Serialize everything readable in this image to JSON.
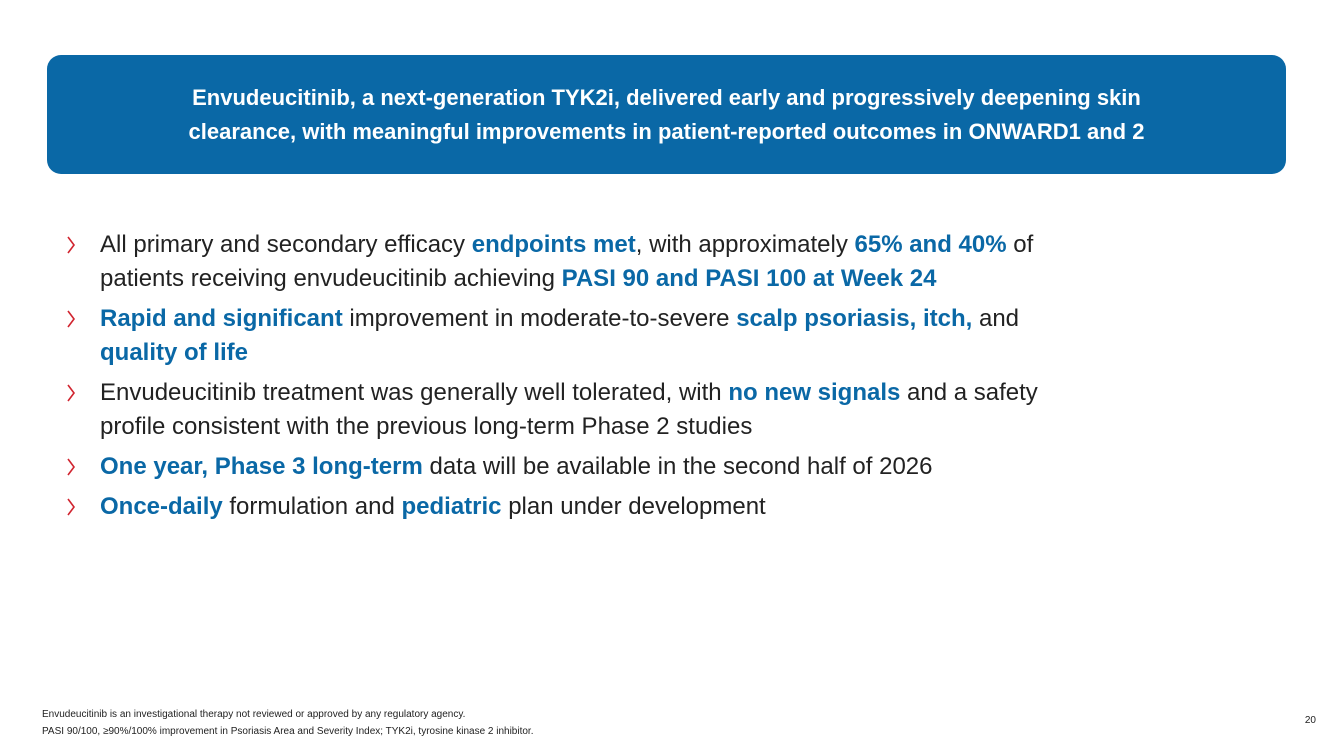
{
  "header": {
    "line1": "Envudeucitinib, a next-generation TYK2i, delivered early and progressively deepening skin",
    "line2": "clearance, with meaningful improvements in patient-reported outcomes in ONWARD1 and 2"
  },
  "bullets": [
    {
      "p1": "All primary and secondary efficacy ",
      "h1": "endpoints met",
      "p2": ", with approximately ",
      "h2": "65% and 40%",
      "p3": " of",
      "p4": "patients receiving envudeucitinib achieving ",
      "h3": "PASI 90 and PASI 100 at Week 24"
    },
    {
      "h1": "Rapid and significant",
      "p1": " improvement in moderate-to-severe ",
      "h2": "scalp psoriasis, itch,",
      "p2": " and",
      "h3": "quality of life"
    },
    {
      "p1": "Envudeucitinib treatment was generally well tolerated, with ",
      "h1": "no new signals",
      "p2": " and a safety",
      "p3": "profile consistent with the previous long-term Phase 2 studies"
    },
    {
      "h1": "One year, Phase 3 long-term",
      "p1": " data will be available in the second half of 2026"
    },
    {
      "h1": "Once-daily",
      "p1": " formulation and ",
      "h2": "pediatric",
      "p2": " plan under development"
    }
  ],
  "footnotes": {
    "line1": "Envudeucitinib is an investigational therapy not reviewed or approved by any regulatory agency.",
    "line2": "PASI 90/100, ≥90%/100% improvement in Psoriasis Area and Severity Index; TYK2i, tyrosine kinase 2 inhibitor."
  },
  "page_number": "20",
  "colors": {
    "accent_blue": "#0a68a6",
    "bullet_red": "#d1242f"
  },
  "icons": {
    "bullet": "chevron-right-icon"
  }
}
